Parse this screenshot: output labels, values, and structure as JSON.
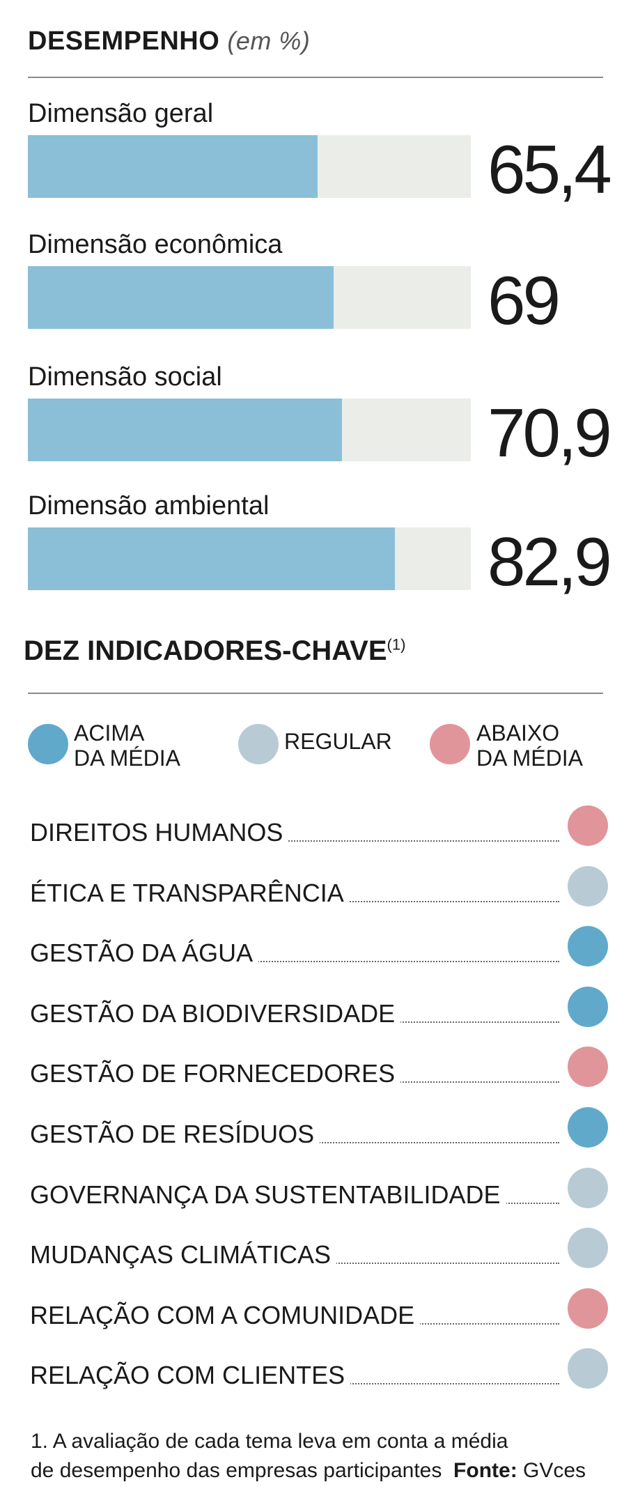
{
  "performance": {
    "title": "DESEMPENHO",
    "unit": "(em %)",
    "max": 100,
    "items": [
      {
        "label": "Dimensão geral",
        "value": 65.4,
        "display": "65,4"
      },
      {
        "label": "Dimensão econômica",
        "value": 69,
        "display": "69"
      },
      {
        "label": "Dimensão social",
        "value": 70.9,
        "display": "70,9"
      },
      {
        "label": "Dimensão ambiental",
        "value": 82.9,
        "display": "82,9"
      }
    ]
  },
  "indicators": {
    "title": "DEZ INDICADORES-CHAVE",
    "note_marker": "(1)",
    "legend": [
      {
        "key": "acima",
        "line1": "ACIMA",
        "line2": "DA MÉDIA"
      },
      {
        "key": "regular",
        "line1": "REGULAR",
        "line2": ""
      },
      {
        "key": "abaixo",
        "line1": "ABAIXO",
        "line2": "DA MÉDIA"
      }
    ],
    "items": [
      {
        "label": "DIREITOS HUMANOS",
        "status": "abaixo"
      },
      {
        "label": "ÉTICA E TRANSPARÊNCIA",
        "status": "regular"
      },
      {
        "label": "GESTÃO DA ÁGUA",
        "status": "acima"
      },
      {
        "label": "GESTÃO DA BIODIVERSIDADE",
        "status": "acima"
      },
      {
        "label": "GESTÃO DE FORNECEDORES",
        "status": "abaixo"
      },
      {
        "label": "GESTÃO DE RESÍDUOS",
        "status": "acima"
      },
      {
        "label": "GOVERNANÇA DA SUSTENTABILIDADE",
        "status": "regular"
      },
      {
        "label": "MUDANÇAS CLIMÁTICAS",
        "status": "regular"
      },
      {
        "label": "RELAÇÃO COM A COMUNIDADE",
        "status": "abaixo"
      },
      {
        "label": "RELAÇÃO COM CLIENTES",
        "status": "regular"
      }
    ]
  },
  "colors": {
    "acima": "#60a9cb",
    "regular": "#b8cbd5",
    "abaixo": "#e0959b",
    "bar_fill": "#8bbfd7",
    "bar_track": "#ebede8"
  },
  "footnote": {
    "line1": "1. A avaliação de cada tema leva em conta a média",
    "line2": "de desempenho das empresas participantes",
    "source_label": "Fonte:",
    "source": "GVces"
  },
  "chart_data": {
    "type": "bar",
    "title": "DESEMPENHO (em %)",
    "categories": [
      "Dimensão geral",
      "Dimensão econômica",
      "Dimensão social",
      "Dimensão ambiental"
    ],
    "values": [
      65.4,
      69,
      70.9,
      82.9
    ],
    "xlabel": "",
    "ylabel": "%",
    "ylim": [
      0,
      100
    ]
  }
}
